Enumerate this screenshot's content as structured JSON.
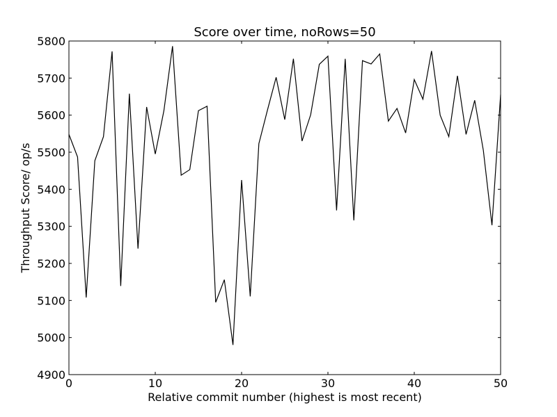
{
  "chart_data": {
    "type": "line",
    "title": "Score over time, noRows=50",
    "xlabel": "Relative commit number (highest is most recent)",
    "ylabel": "Throughput Score/ op/s",
    "xlim": [
      0,
      50
    ],
    "ylim": [
      4900,
      5800
    ],
    "xticks": [
      "0",
      "10",
      "20",
      "30",
      "40",
      "50"
    ],
    "yticks": [
      "4900",
      "5000",
      "5100",
      "5200",
      "5300",
      "5400",
      "5500",
      "5600",
      "5700",
      "5800"
    ],
    "grid": false,
    "line_color": "#000000",
    "series": [
      {
        "x": [
          0,
          1,
          2,
          3,
          4,
          5,
          6,
          7,
          8,
          9,
          10,
          11,
          12,
          13,
          14,
          15,
          16,
          17,
          18,
          19,
          20,
          21,
          22,
          23,
          24,
          25,
          26,
          27,
          28,
          29,
          30,
          31,
          32,
          33,
          34,
          35,
          36,
          37,
          38,
          39,
          40,
          41,
          42,
          43,
          44,
          45,
          46,
          47,
          48,
          49,
          50
        ],
        "values": [
          5548,
          5487,
          5108,
          5477,
          5542,
          5772,
          5139,
          5658,
          5240,
          5622,
          5495,
          5612,
          5786,
          5438,
          5453,
          5612,
          5624,
          5095,
          5156,
          4980,
          5425,
          5111,
          5523,
          5614,
          5702,
          5588,
          5752,
          5530,
          5601,
          5737,
          5759,
          5343,
          5752,
          5316,
          5747,
          5738,
          5765,
          5584,
          5618,
          5552,
          5696,
          5643,
          5773,
          5600,
          5542,
          5706,
          5548,
          5640,
          5505,
          5303,
          5655
        ]
      }
    ]
  }
}
